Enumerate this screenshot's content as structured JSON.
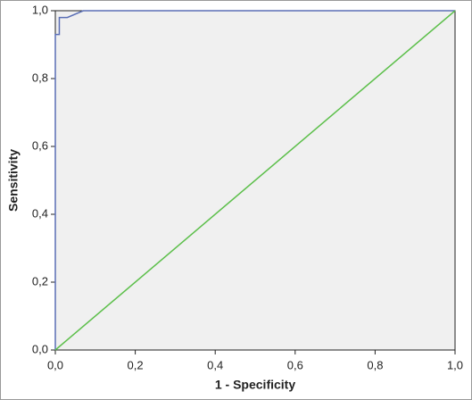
{
  "chart_data": {
    "type": "line",
    "x_label": "1 - Specificity",
    "y_label": "Sensitivity",
    "xlim": [
      0,
      1
    ],
    "ylim": [
      0,
      1
    ],
    "xticks": [
      {
        "value": 0,
        "label": "0,0"
      },
      {
        "value": 0.2,
        "label": "0,2"
      },
      {
        "value": 0.4,
        "label": "0,4"
      },
      {
        "value": 0.6,
        "label": "0,6"
      },
      {
        "value": 0.8,
        "label": "0,8"
      },
      {
        "value": 1,
        "label": "1,0"
      }
    ],
    "yticks": [
      {
        "value": 0,
        "label": "0,0"
      },
      {
        "value": 0.2,
        "label": "0,2"
      },
      {
        "value": 0.4,
        "label": "0,4"
      },
      {
        "value": 0.6,
        "label": "0,6"
      },
      {
        "value": 0.8,
        "label": "0,8"
      },
      {
        "value": 1,
        "label": "1,0"
      }
    ],
    "grid": false,
    "series": [
      {
        "color": "#5b6fb5",
        "x": [
          0,
          0,
          0.01,
          0.01,
          0.03,
          0.07,
          1
        ],
        "values": [
          0,
          0.93,
          0.93,
          0.98,
          0.98,
          1,
          1
        ]
      },
      {
        "color": "#5cbf4a",
        "x": [
          0,
          1
        ],
        "values": [
          0,
          1
        ]
      }
    ]
  }
}
